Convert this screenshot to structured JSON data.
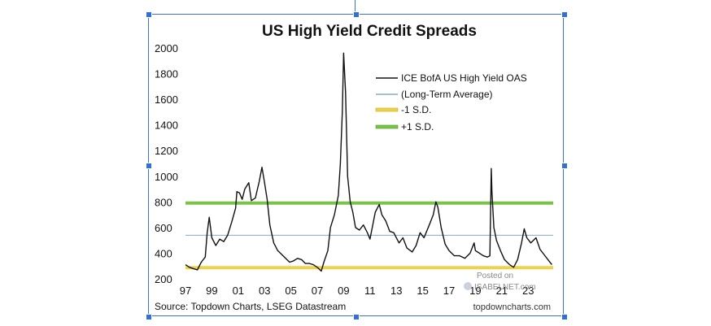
{
  "chart_data": {
    "type": "line",
    "title": "US High Yield Credit Spreads",
    "xlabel": "",
    "ylabel": "",
    "ylim": [
      200,
      2000
    ],
    "xlim": [
      1997,
      2024.9
    ],
    "y_ticks": [
      "200",
      "400",
      "600",
      "800",
      "1000",
      "1200",
      "1400",
      "1600",
      "1800",
      "2000"
    ],
    "x_ticks": [
      "97",
      "99",
      "01",
      "03",
      "05",
      "07",
      "09",
      "11",
      "13",
      "15",
      "17",
      "19",
      "21",
      "23"
    ],
    "x_tick_years": [
      1997,
      1999,
      2001,
      2003,
      2005,
      2007,
      2009,
      2011,
      2013,
      2015,
      2017,
      2019,
      2021,
      2023
    ],
    "grid": false,
    "legend_position": "top-right",
    "legend": [
      {
        "label": "ICE BofA US High Yield OAS",
        "color": "#111111"
      },
      {
        "label": "(Long-Term Average)",
        "color": "#8aaac8"
      },
      {
        "label": "-1 S.D.",
        "color": "#f0d246"
      },
      {
        "label": "+1 S.D.",
        "color": "#79c448"
      }
    ],
    "series": [
      {
        "name": "ICE BofA US High Yield OAS",
        "color": "#111111",
        "x": [
          1997.0,
          1997.3,
          1997.6,
          1997.9,
          1998.2,
          1998.5,
          1998.65,
          1998.8,
          1999.0,
          1999.3,
          1999.6,
          1999.9,
          2000.2,
          2000.5,
          2000.8,
          2000.9,
          2001.1,
          2001.3,
          2001.5,
          2001.8,
          2002.0,
          2002.3,
          2002.6,
          2002.8,
          2003.0,
          2003.2,
          2003.4,
          2003.7,
          2004.0,
          2004.3,
          2004.6,
          2004.9,
          2005.2,
          2005.5,
          2005.8,
          2006.1,
          2006.4,
          2006.7,
          2007.0,
          2007.3,
          2007.5,
          2007.8,
          2008.0,
          2008.3,
          2008.6,
          2008.75,
          2008.9,
          2009.0,
          2009.15,
          2009.3,
          2009.5,
          2009.7,
          2009.9,
          2010.2,
          2010.5,
          2010.8,
          2011.0,
          2011.4,
          2011.7,
          2011.9,
          2012.2,
          2012.5,
          2012.8,
          2013.2,
          2013.5,
          2013.8,
          2014.2,
          2014.5,
          2014.8,
          2015.1,
          2015.5,
          2015.8,
          2016.0,
          2016.15,
          2016.4,
          2016.7,
          2017.0,
          2017.4,
          2017.8,
          2018.2,
          2018.6,
          2018.9,
          2019.0,
          2019.3,
          2019.6,
          2019.9,
          2020.1,
          2020.2,
          2020.25,
          2020.4,
          2020.6,
          2020.9,
          2021.2,
          2021.6,
          2021.9,
          2022.2,
          2022.5,
          2022.7,
          2022.9,
          2023.2,
          2023.6,
          2023.9,
          2024.2,
          2024.5,
          2024.8
        ],
        "values": [
          310,
          290,
          280,
          270,
          330,
          370,
          560,
          680,
          520,
          460,
          510,
          490,
          540,
          640,
          750,
          880,
          870,
          820,
          900,
          950,
          810,
          830,
          960,
          1070,
          950,
          820,
          620,
          480,
          420,
          390,
          360,
          330,
          340,
          360,
          350,
          320,
          320,
          310,
          290,
          260,
          330,
          420,
          600,
          700,
          850,
          1100,
          1500,
          1960,
          1650,
          1000,
          800,
          720,
          600,
          580,
          620,
          560,
          510,
          720,
          780,
          700,
          650,
          570,
          560,
          480,
          520,
          440,
          410,
          460,
          560,
          520,
          620,
          700,
          800,
          760,
          600,
          470,
          420,
          380,
          380,
          360,
          400,
          480,
          420,
          400,
          380,
          370,
          380,
          1060,
          880,
          600,
          500,
          420,
          350,
          310,
          290,
          350,
          480,
          590,
          520,
          480,
          520,
          430,
          390,
          350,
          310
        ]
      }
    ],
    "reference_lines": [
      {
        "name": "(Long-Term Average)",
        "value": 540,
        "color": "#8aaac8"
      },
      {
        "name": "-1 S.D.",
        "value": 287,
        "color": "#f0d246"
      },
      {
        "name": "+1 S.D.",
        "value": 791,
        "color": "#79c448"
      }
    ],
    "source": "Source: Topdown Charts, LSEG Datastream",
    "credit": "topdowncharts.com",
    "watermark_top": "Posted on",
    "watermark_brand": "ISABELNET.com"
  }
}
